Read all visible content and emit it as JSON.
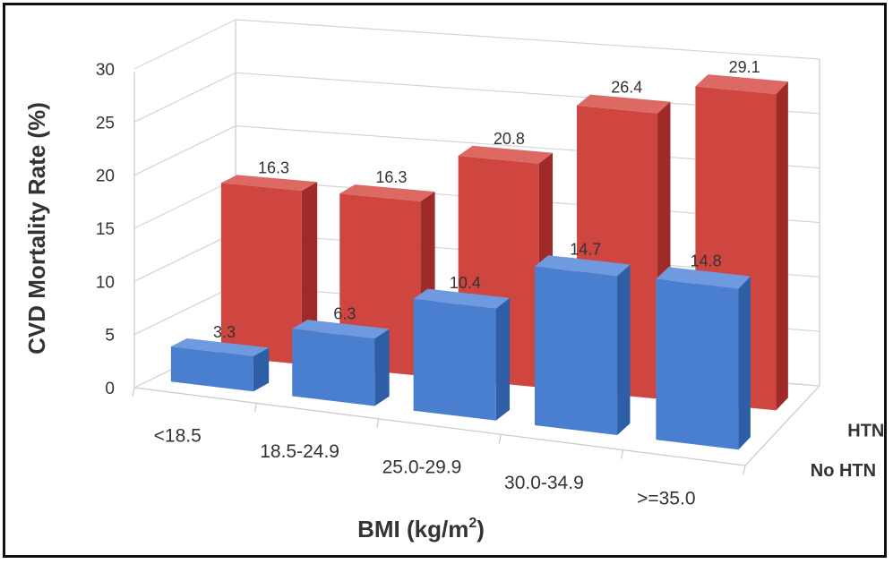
{
  "chart_data": {
    "type": "bar",
    "style": "3d-clustered-depth",
    "ylabel": "CVD Mortality Rate (%)",
    "xlabel_prefix": "BMI (kg/m",
    "xlabel_sup": "2",
    "xlabel_suffix": ")",
    "ylim": [
      0,
      30
    ],
    "yticks": [
      "0",
      "5",
      "10",
      "15",
      "20",
      "25",
      "30"
    ],
    "categories": [
      "<18.5",
      "18.5-24.9",
      "25.0-29.9",
      "30.0-34.9",
      ">=35.0"
    ],
    "series": [
      {
        "name": "No HTN",
        "values": [
          3.3,
          6.3,
          10.4,
          14.7,
          14.8
        ],
        "labels": [
          "3.3",
          "6.3",
          "10.4",
          "14.7",
          "14.8"
        ]
      },
      {
        "name": "HTN",
        "values": [
          16.3,
          16.3,
          20.8,
          26.4,
          29.1
        ],
        "labels": [
          "16.3",
          "16.3",
          "20.8",
          "26.4",
          "29.1"
        ]
      }
    ],
    "colors": {
      "No HTN": {
        "front": "#4a7fd0",
        "side": "#2e5fa6",
        "top": "#6f9ae0"
      },
      "HTN": {
        "front": "#cf4540",
        "side": "#9e2b28",
        "top": "#dc6a63"
      }
    }
  }
}
